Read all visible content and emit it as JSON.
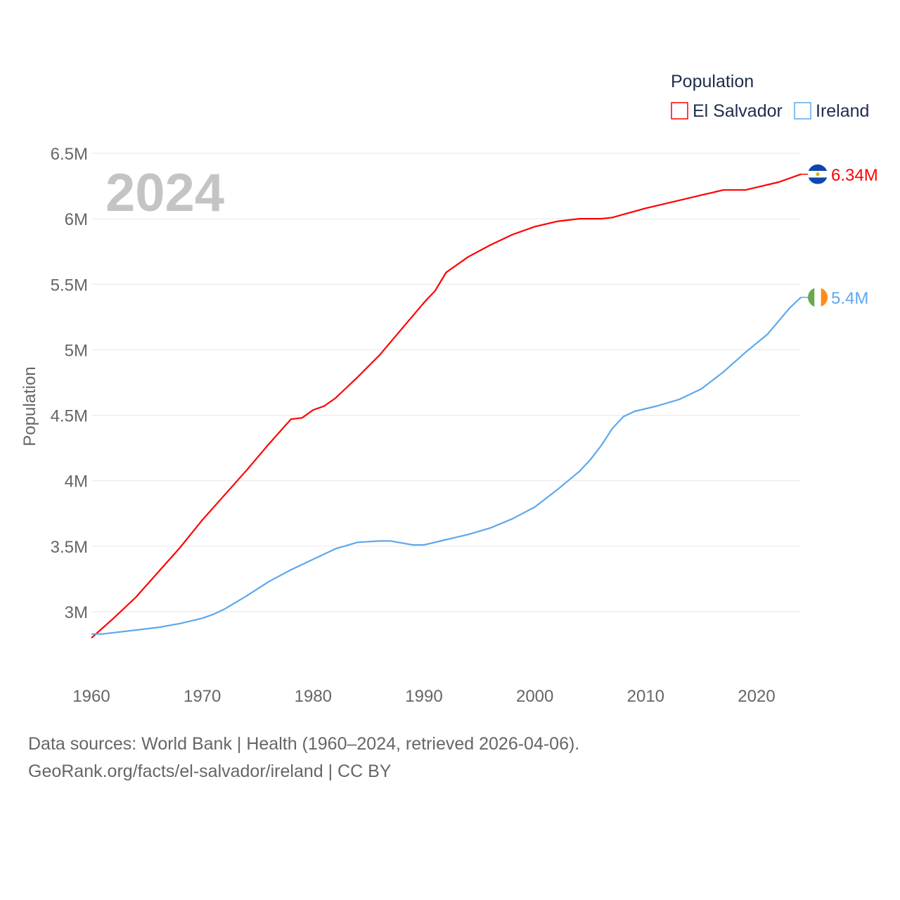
{
  "chart_data": {
    "type": "line",
    "title": "",
    "big_year_label": "2024",
    "xlabel": "",
    "ylabel": "Population",
    "xlim": [
      1960,
      2024
    ],
    "ylim": [
      2.8,
      6.5
    ],
    "x_ticks": [
      "1960",
      "1970",
      "1980",
      "1990",
      "2000",
      "2010",
      "2020"
    ],
    "y_ticks": [
      {
        "v": 3,
        "label": "3M"
      },
      {
        "v": 3.5,
        "label": "3.5M"
      },
      {
        "v": 4,
        "label": "4M"
      },
      {
        "v": 4.5,
        "label": "4.5M"
      },
      {
        "v": 5,
        "label": "5M"
      },
      {
        "v": 5.5,
        "label": "5.5M"
      },
      {
        "v": 6,
        "label": "6M"
      },
      {
        "v": 6.5,
        "label": "6.5M"
      }
    ],
    "grid": true,
    "legend": {
      "title": "Population",
      "placement": "top-right"
    },
    "series": [
      {
        "name": "El Salvador",
        "color": "#ff0000",
        "end_label": "6.34M",
        "flag": "el-salvador-flag",
        "points": [
          [
            1960,
            2.8
          ],
          [
            1962,
            2.95
          ],
          [
            1964,
            3.11
          ],
          [
            1966,
            3.3
          ],
          [
            1968,
            3.49
          ],
          [
            1970,
            3.7
          ],
          [
            1972,
            3.89
          ],
          [
            1974,
            4.08
          ],
          [
            1976,
            4.28
          ],
          [
            1978,
            4.47
          ],
          [
            1979,
            4.48
          ],
          [
            1980,
            4.54
          ],
          [
            1981,
            4.57
          ],
          [
            1982,
            4.63
          ],
          [
            1983,
            4.71
          ],
          [
            1984,
            4.79
          ],
          [
            1986,
            4.96
          ],
          [
            1988,
            5.16
          ],
          [
            1990,
            5.36
          ],
          [
            1991,
            5.45
          ],
          [
            1992,
            5.59
          ],
          [
            1993,
            5.65
          ],
          [
            1994,
            5.71
          ],
          [
            1996,
            5.8
          ],
          [
            1998,
            5.88
          ],
          [
            2000,
            5.94
          ],
          [
            2002,
            5.98
          ],
          [
            2004,
            6.0
          ],
          [
            2006,
            6.0
          ],
          [
            2007,
            6.01
          ],
          [
            2010,
            6.08
          ],
          [
            2013,
            6.14
          ],
          [
            2015,
            6.18
          ],
          [
            2017,
            6.22
          ],
          [
            2019,
            6.22
          ],
          [
            2020,
            6.24
          ],
          [
            2022,
            6.28
          ],
          [
            2024,
            6.34
          ]
        ]
      },
      {
        "name": "Ireland",
        "color": "#5ea8ec",
        "end_label": "5.4M",
        "flag": "ireland-flag",
        "points": [
          [
            1960,
            2.83
          ],
          [
            1961,
            2.83
          ],
          [
            1962,
            2.84
          ],
          [
            1964,
            2.86
          ],
          [
            1966,
            2.88
          ],
          [
            1968,
            2.91
          ],
          [
            1970,
            2.95
          ],
          [
            1971,
            2.98
          ],
          [
            1972,
            3.02
          ],
          [
            1974,
            3.12
          ],
          [
            1976,
            3.23
          ],
          [
            1978,
            3.32
          ],
          [
            1980,
            3.4
          ],
          [
            1982,
            3.48
          ],
          [
            1984,
            3.53
          ],
          [
            1986,
            3.54
          ],
          [
            1987,
            3.54
          ],
          [
            1989,
            3.51
          ],
          [
            1990,
            3.51
          ],
          [
            1992,
            3.55
          ],
          [
            1994,
            3.59
          ],
          [
            1996,
            3.64
          ],
          [
            1998,
            3.71
          ],
          [
            2000,
            3.8
          ],
          [
            2002,
            3.93
          ],
          [
            2004,
            4.07
          ],
          [
            2005,
            4.16
          ],
          [
            2006,
            4.27
          ],
          [
            2007,
            4.4
          ],
          [
            2008,
            4.49
          ],
          [
            2009,
            4.53
          ],
          [
            2011,
            4.57
          ],
          [
            2013,
            4.62
          ],
          [
            2015,
            4.7
          ],
          [
            2017,
            4.83
          ],
          [
            2019,
            4.98
          ],
          [
            2021,
            5.12
          ],
          [
            2023,
            5.32
          ],
          [
            2024,
            5.4
          ]
        ]
      }
    ]
  },
  "footer": {
    "line1": "Data sources: World Bank | Health (1960–2024, retrieved 2026-04-06).",
    "line2": "GeoRank.org/facts/el-salvador/ireland | CC BY"
  }
}
